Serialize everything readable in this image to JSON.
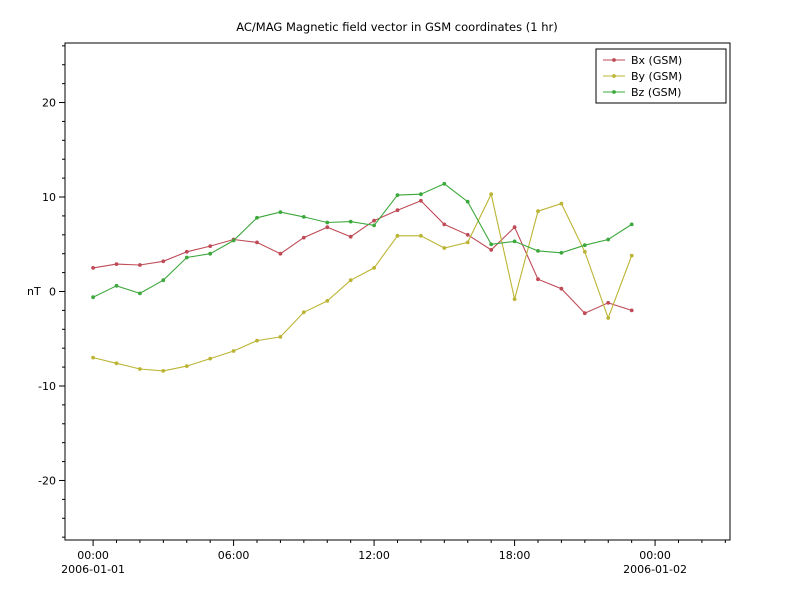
{
  "title": "AC/MAG  Magnetic field vector in GSM coordinates (1 hr)",
  "chart_data": {
    "type": "line",
    "title": "AC/MAG  Magnetic field vector in GSM coordinates (1 hr)",
    "xlabel": "",
    "ylabel": "nT",
    "grid": false,
    "legend_position": "top-right",
    "xlim": [
      -1.2,
      27.2
    ],
    "ylim": [
      -26.3,
      26.3
    ],
    "yticks": [
      -20,
      -10,
      0,
      10,
      20
    ],
    "y_minor_step": 2,
    "x_minor_step": 1,
    "xticks": [
      {
        "hour": 0,
        "label": "00:00",
        "date": "2006-01-01"
      },
      {
        "hour": 6,
        "label": "06:00",
        "date": ""
      },
      {
        "hour": 12,
        "label": "12:00",
        "date": ""
      },
      {
        "hour": 18,
        "label": "18:00",
        "date": ""
      },
      {
        "hour": 24,
        "label": "00:00",
        "date": "2006-01-02"
      }
    ],
    "x_hours": [
      0,
      1,
      2,
      3,
      4,
      5,
      6,
      7,
      8,
      9,
      10,
      11,
      12,
      13,
      14,
      15,
      16,
      17,
      18,
      19,
      20,
      21,
      22,
      23
    ],
    "series": [
      {
        "name": "Bx (GSM)",
        "color": "#bf4b57",
        "values": [
          2.5,
          2.9,
          2.8,
          3.2,
          4.2,
          4.8,
          5.5,
          5.2,
          4.0,
          5.7,
          6.8,
          5.8,
          7.5,
          8.6,
          9.6,
          7.1,
          6.0,
          4.4,
          6.8,
          1.3,
          0.3,
          -2.3,
          -1.2,
          -2.0
        ]
      },
      {
        "name": "By (GSM)",
        "color": "#bcb434",
        "values": [
          -7.0,
          -7.6,
          -8.2,
          -8.4,
          -7.9,
          -7.1,
          -6.3,
          -5.2,
          -4.8,
          -2.2,
          -1.0,
          1.2,
          2.5,
          5.9,
          5.9,
          4.6,
          5.2,
          10.3,
          -0.8,
          8.5,
          9.3,
          4.2,
          -2.8,
          3.8
        ]
      },
      {
        "name": "Bz (GSM)",
        "color": "#3da83d",
        "values": [
          -0.6,
          0.6,
          -0.2,
          1.2,
          3.6,
          4.0,
          5.4,
          7.8,
          8.4,
          7.9,
          7.3,
          7.4,
          7.0,
          10.2,
          10.3,
          11.4,
          9.5,
          5.0,
          5.3,
          4.3,
          4.1,
          4.9,
          5.5,
          7.1
        ]
      }
    ]
  }
}
